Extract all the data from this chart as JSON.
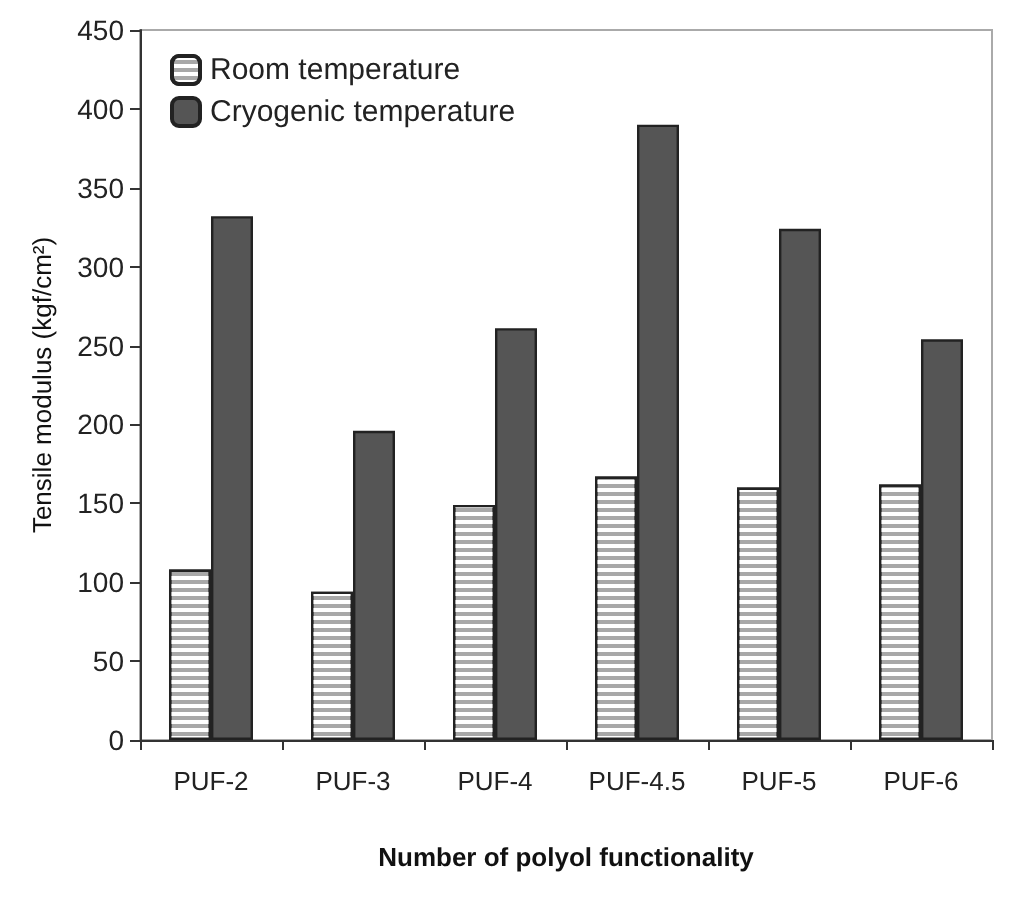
{
  "chart_data": {
    "type": "bar",
    "xlabel": "Number of polyol functionality",
    "ylabel": "Tensile modulus (kgf/cm²)",
    "categories": [
      "PUF-2",
      "PUF-3",
      "PUF-4",
      "PUF-4.5",
      "PUF-5",
      "PUF-6"
    ],
    "series": [
      {
        "name": "Room temperature",
        "color": "#a8a8a8",
        "values": [
          108,
          94,
          149,
          167,
          160,
          162
        ]
      },
      {
        "name": "Cryogenic temperature",
        "color": "#555555",
        "values": [
          332,
          196,
          261,
          390,
          324,
          254
        ]
      }
    ],
    "ylim": [
      0,
      450
    ],
    "yticks": [
      0,
      50,
      100,
      150,
      200,
      250,
      300,
      350,
      400,
      450
    ],
    "grid": false,
    "legend": "top left"
  }
}
